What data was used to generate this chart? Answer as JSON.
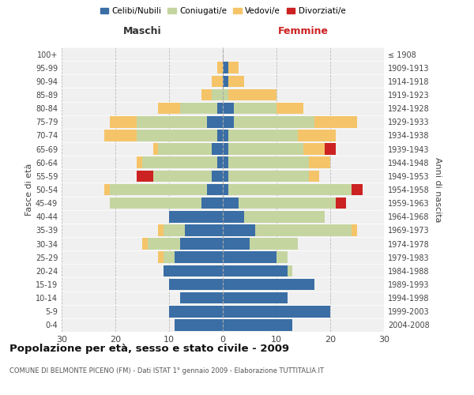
{
  "age_groups": [
    "0-4",
    "5-9",
    "10-14",
    "15-19",
    "20-24",
    "25-29",
    "30-34",
    "35-39",
    "40-44",
    "45-49",
    "50-54",
    "55-59",
    "60-64",
    "65-69",
    "70-74",
    "75-79",
    "80-84",
    "85-89",
    "90-94",
    "95-99",
    "100+"
  ],
  "birth_years": [
    "2004-2008",
    "1999-2003",
    "1994-1998",
    "1989-1993",
    "1984-1988",
    "1979-1983",
    "1974-1978",
    "1969-1973",
    "1964-1968",
    "1959-1963",
    "1954-1958",
    "1949-1953",
    "1944-1948",
    "1939-1943",
    "1934-1938",
    "1929-1933",
    "1924-1928",
    "1919-1923",
    "1914-1918",
    "1909-1913",
    "≤ 1908"
  ],
  "colors": {
    "celibi": "#3a6ea5",
    "coniugati": "#c5d5a0",
    "vedovi": "#f5c469",
    "divorziati": "#cc2222"
  },
  "maschi": {
    "celibi": [
      9,
      10,
      8,
      10,
      11,
      9,
      8,
      7,
      10,
      4,
      3,
      2,
      1,
      2,
      1,
      3,
      1,
      0,
      0,
      0,
      0
    ],
    "coniugati": [
      0,
      0,
      0,
      0,
      0,
      2,
      6,
      4,
      0,
      17,
      18,
      11,
      14,
      10,
      15,
      13,
      7,
      2,
      0,
      0,
      0
    ],
    "vedovi": [
      0,
      0,
      0,
      0,
      0,
      1,
      1,
      1,
      0,
      0,
      1,
      0,
      1,
      1,
      6,
      5,
      4,
      2,
      2,
      1,
      0
    ],
    "divorziati": [
      0,
      0,
      0,
      0,
      0,
      0,
      0,
      0,
      0,
      0,
      0,
      3,
      0,
      0,
      0,
      0,
      0,
      0,
      0,
      0,
      0
    ]
  },
  "femmine": {
    "celibi": [
      13,
      20,
      12,
      17,
      12,
      10,
      5,
      6,
      4,
      3,
      1,
      1,
      1,
      1,
      1,
      2,
      2,
      0,
      1,
      1,
      0
    ],
    "coniugati": [
      0,
      0,
      0,
      0,
      1,
      2,
      9,
      18,
      15,
      18,
      23,
      15,
      15,
      14,
      13,
      15,
      8,
      1,
      0,
      0,
      0
    ],
    "vedovi": [
      0,
      0,
      0,
      0,
      0,
      0,
      0,
      1,
      0,
      0,
      0,
      2,
      4,
      4,
      7,
      8,
      5,
      9,
      3,
      2,
      0
    ],
    "divorziati": [
      0,
      0,
      0,
      0,
      0,
      0,
      0,
      0,
      0,
      2,
      2,
      0,
      0,
      2,
      0,
      0,
      0,
      0,
      0,
      0,
      0
    ]
  },
  "title": "Popolazione per età, sesso e stato civile - 2009",
  "subtitle": "COMUNE DI BELMONTE PICENO (FM) - Dati ISTAT 1° gennaio 2009 - Elaborazione TUTTITALIA.IT",
  "xlabel_left": "Maschi",
  "xlabel_right": "Femmine",
  "ylabel_left": "Fasce di età",
  "ylabel_right": "Anni di nascita",
  "xlim": 30,
  "legend_labels": [
    "Celibi/Nubili",
    "Coniugati/e",
    "Vedovi/e",
    "Divorziati/e"
  ],
  "background_color": "#f0f0f0",
  "bar_height": 0.85
}
